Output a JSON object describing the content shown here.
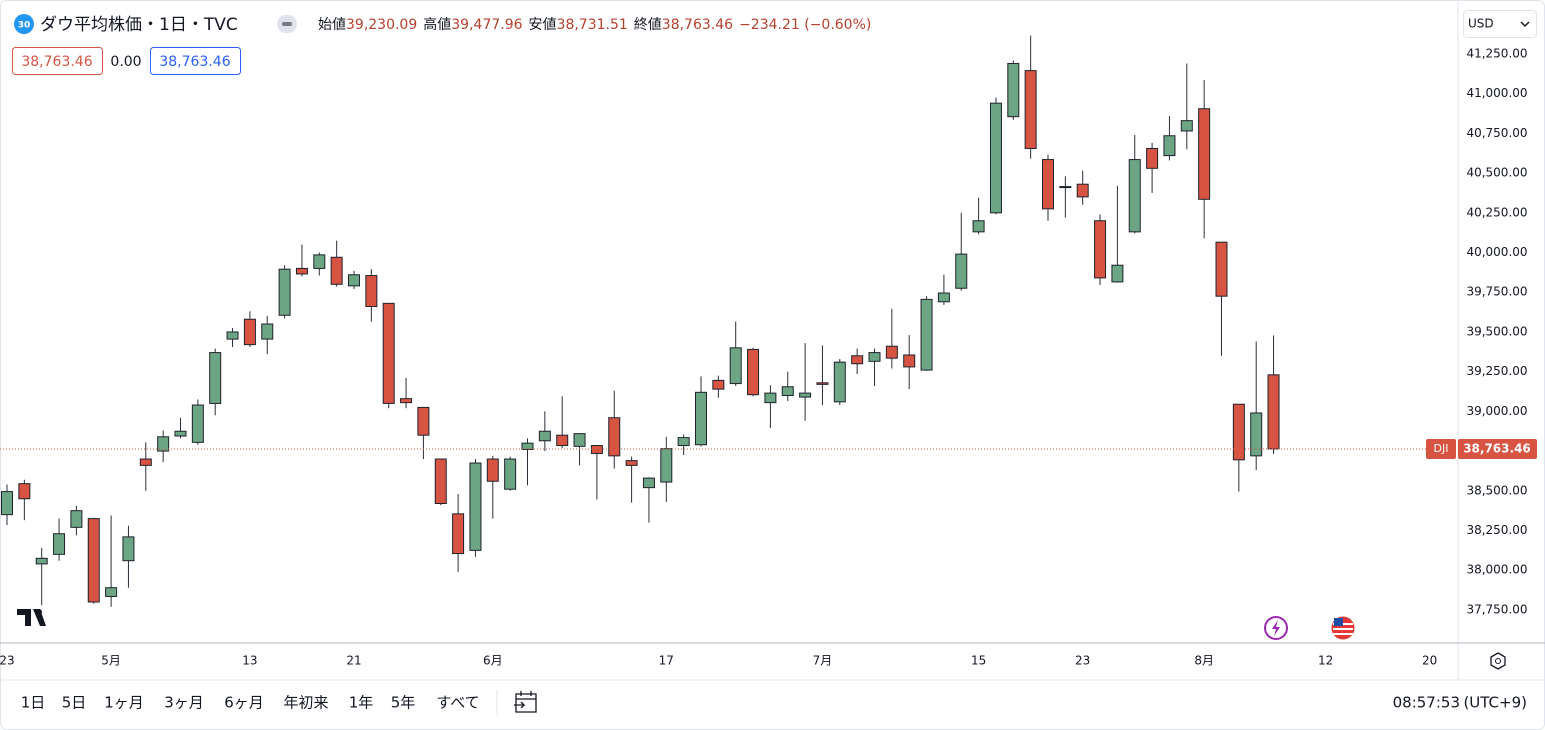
{
  "header": {
    "badge": "30",
    "legend": [
      {
        "label": "始値",
        "value": "39,230.09"
      },
      {
        "label": "高値",
        "value": "39,477.96"
      },
      {
        "label": "安値",
        "value": "38,731.51"
      },
      {
        "label": "終値",
        "value": "38,763.46"
      }
    ],
    "change": "−234.21 (−0.60%)",
    "boxes": [
      "38,763.46",
      "0.00",
      "38,763.46"
    ],
    "currency": "USD"
  },
  "toolbar": {
    "ranges": [
      "1日",
      "5日",
      "1ヶ月",
      "3ヶ月",
      "6ヶ月",
      "年初来",
      "1年",
      "5年",
      "すべて"
    ],
    "time": "08:57:53",
    "timezone": "(UTC+9)"
  },
  "chart_data": {
    "type": "candlestick",
    "title": "ダウ平均株価・1日・TVC",
    "symbol": "DJI",
    "categories": [
      "23",
      null,
      null,
      null,
      null,
      null,
      "5月",
      null,
      null,
      null,
      null,
      null,
      null,
      null,
      "13",
      null,
      null,
      null,
      null,
      null,
      "21",
      null,
      null,
      null,
      null,
      null,
      null,
      null,
      "6月",
      null,
      null,
      null,
      null,
      null,
      null,
      null,
      null,
      null,
      "17",
      null,
      null,
      null,
      null,
      null,
      null,
      null,
      null,
      "7月",
      null,
      null,
      null,
      null,
      null,
      null,
      null,
      null,
      "15",
      null,
      null,
      null,
      null,
      null,
      "23",
      null,
      null,
      null,
      null,
      null,
      null,
      "8月",
      null,
      null,
      null,
      null,
      null,
      null,
      "12",
      null,
      null,
      null,
      null,
      null,
      "20"
    ],
    "open": [
      38350,
      38545,
      38040,
      38100,
      38270,
      38325,
      37835,
      38060,
      38700,
      38750,
      38845,
      38805,
      39050,
      39455,
      39580,
      39455,
      39605,
      39900,
      39900,
      39970,
      39790,
      39855,
      39680,
      39080,
      39025,
      38700,
      38355,
      38125,
      38700,
      38510,
      38760,
      38815,
      38850,
      38780,
      38785,
      38960,
      38690,
      38520,
      38555,
      38785,
      38790,
      39195,
      39175,
      39390,
      39055,
      39100,
      39090,
      39180,
      39060,
      39350,
      39315,
      39410,
      39355,
      39260,
      39690,
      39775,
      40130,
      40250,
      40855,
      41145,
      40585,
      40410,
      40430,
      40200,
      39815,
      40130,
      40655,
      40610,
      40765,
      40905,
      40065,
      39045,
      38720,
      39230.09,
      null,
      null,
      null,
      null,
      null,
      null,
      null,
      null,
      null
    ],
    "high": [
      38540,
      38570,
      38140,
      38325,
      38405,
      38330,
      38345,
      38280,
      38805,
      38880,
      38960,
      39075,
      39395,
      39525,
      39630,
      39600,
      39920,
      40050,
      40000,
      40075,
      39885,
      39895,
      39680,
      39210,
      39025,
      38700,
      38480,
      38700,
      38720,
      38715,
      38830,
      39000,
      39095,
      38860,
      38785,
      39130,
      38715,
      38585,
      38840,
      38855,
      39220,
      39225,
      39565,
      39400,
      39165,
      39250,
      39430,
      39415,
      39330,
      39395,
      39395,
      39645,
      39480,
      39725,
      39860,
      40250,
      40345,
      40975,
      41210,
      41365,
      40615,
      40480,
      40515,
      40240,
      40420,
      40740,
      40690,
      40860,
      41190,
      41085,
      40065,
      39045,
      39440,
      39477.96,
      null,
      null,
      null,
      null,
      null,
      null,
      null,
      null,
      null
    ],
    "low": [
      38285,
      38315,
      37780,
      38060,
      38220,
      37790,
      37770,
      37890,
      38500,
      38680,
      38830,
      38790,
      38975,
      39405,
      39405,
      39360,
      39585,
      39850,
      39855,
      39785,
      39770,
      39565,
      39020,
      39020,
      38700,
      38410,
      37990,
      38085,
      38325,
      38500,
      38535,
      38750,
      38770,
      38660,
      38445,
      38640,
      38425,
      38300,
      38430,
      38725,
      38780,
      39085,
      39160,
      39095,
      38895,
      39065,
      38940,
      39040,
      39040,
      39235,
      39160,
      39270,
      39140,
      39255,
      39670,
      39760,
      40115,
      40240,
      40835,
      40590,
      40200,
      40220,
      40300,
      39795,
      39810,
      40120,
      40375,
      40580,
      40650,
      40090,
      39350,
      38495,
      38630,
      38731.51,
      null,
      null,
      null,
      null,
      null,
      null,
      null,
      null,
      null
    ],
    "close": [
      38495,
      38450,
      38075,
      38230,
      38375,
      37800,
      37890,
      38210,
      38660,
      38840,
      38875,
      39040,
      39370,
      39500,
      39420,
      39550,
      39895,
      39865,
      39985,
      39800,
      39860,
      39660,
      39050,
      39055,
      38850,
      38420,
      38105,
      38675,
      38560,
      38700,
      38800,
      38875,
      38785,
      38860,
      38735,
      38720,
      38660,
      38580,
      38765,
      38835,
      39120,
      39140,
      39400,
      39105,
      39115,
      39155,
      39115,
      39170,
      39310,
      39300,
      39370,
      39335,
      39280,
      39705,
      39745,
      39990,
      40200,
      40940,
      41190,
      40655,
      40275,
      40415,
      40350,
      39840,
      39920,
      40585,
      40530,
      40735,
      40830,
      40335,
      39725,
      38695,
      38990,
      38763.46,
      null,
      null,
      null,
      null,
      null,
      null,
      null,
      null,
      null
    ],
    "up_color": "#6ba583",
    "down_color": "#d75442",
    "ylim": [
      37542,
      41558
    ],
    "yticks": [
      {
        "value": 37750,
        "label": "37,750.00"
      },
      {
        "value": 38000,
        "label": "38,000.00"
      },
      {
        "value": 38250,
        "label": "38,250.00"
      },
      {
        "value": 38500,
        "label": "38,500.00"
      },
      {
        "value": 38750,
        "label": "38,750.00"
      },
      {
        "value": 39000,
        "label": "39,000.00"
      },
      {
        "value": 39250,
        "label": "39,250.00"
      },
      {
        "value": 39500,
        "label": "39,500.00"
      },
      {
        "value": 39750,
        "label": "39,750.00"
      },
      {
        "value": 40000,
        "label": "40,000.00"
      },
      {
        "value": 40250,
        "label": "40,250.00"
      },
      {
        "value": 40500,
        "label": "40,500.00"
      },
      {
        "value": 40750,
        "label": "40,750.00"
      },
      {
        "value": 41000,
        "label": "41,000.00"
      },
      {
        "value": 41250,
        "label": "41,250.00"
      }
    ],
    "grid": false,
    "last_price": {
      "value": 38763.46,
      "label": "38,763.46"
    }
  }
}
